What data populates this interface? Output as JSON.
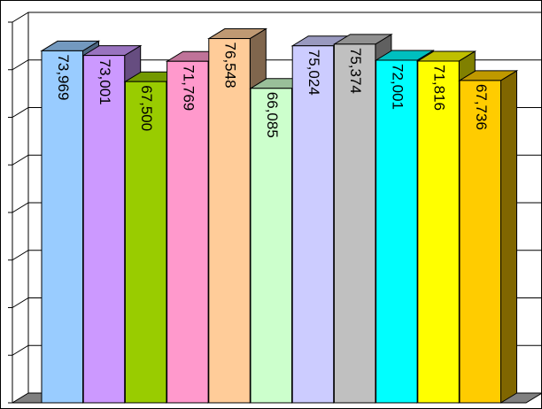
{
  "chart_data": {
    "type": "bar3d",
    "categories": [
      null,
      null,
      null,
      null,
      null,
      null,
      null,
      null,
      null,
      null,
      null
    ],
    "values": [
      73969,
      73001,
      67500,
      71769,
      76548,
      66085,
      75024,
      75374,
      72001,
      71816,
      67736
    ],
    "value_labels": [
      "73,969",
      "73,001",
      "67,500",
      "71,769",
      "76,548",
      "66,085",
      "75,024",
      "75,374",
      "72,001",
      "71,816",
      "67,736"
    ],
    "colors": [
      "#99ccff",
      "#cc99ff",
      "#99cc00",
      "#ff99cc",
      "#ffcc99",
      "#ccffcc",
      "#ccccff",
      "#c0c0c0",
      "#00ffff",
      "#ffff00",
      "#ffcc00"
    ],
    "ylim": [
      0,
      80000
    ],
    "yticks": [
      0,
      10000,
      20000,
      30000,
      40000,
      50000,
      60000,
      70000,
      80000
    ],
    "grid": true
  }
}
